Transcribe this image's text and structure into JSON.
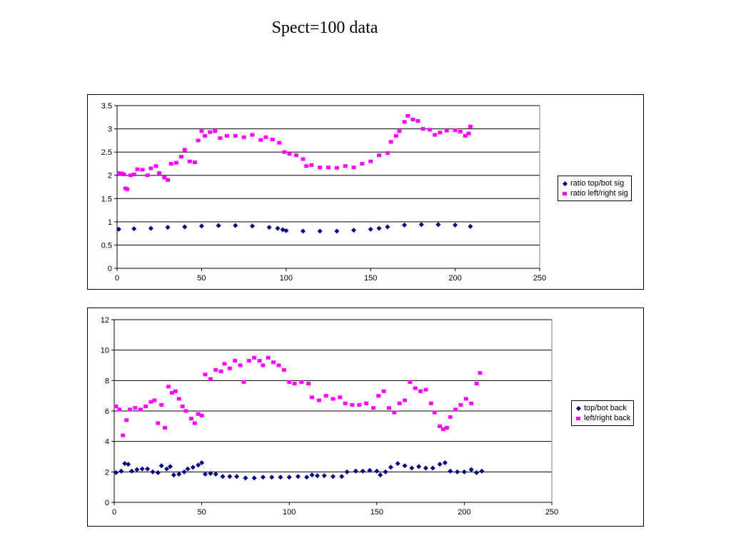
{
  "page": {
    "title": "Spect=100 data"
  },
  "colors": {
    "series_a": "#000080",
    "series_b": "#ff00ff",
    "grid": "#000000",
    "background": "#ffffff"
  },
  "chart_data": [
    {
      "type": "scatter",
      "title": "",
      "xlabel": "",
      "ylabel": "",
      "xlim": [
        0,
        250
      ],
      "ylim": [
        0,
        3.5
      ],
      "xticks": [
        "0",
        "50",
        "100",
        "150",
        "200",
        "250"
      ],
      "yticks": [
        "0",
        "0.5",
        "1",
        "1.5",
        "2",
        "2.5",
        "3",
        "3.5"
      ],
      "grid": "horizontal",
      "legend_position": "right",
      "series": [
        {
          "name": "ratio top/bot sig",
          "marker": "diamond",
          "color": "#000080",
          "points": [
            [
              1,
              0.84
            ],
            [
              10,
              0.85
            ],
            [
              20,
              0.86
            ],
            [
              30,
              0.88
            ],
            [
              40,
              0.89
            ],
            [
              50,
              0.91
            ],
            [
              60,
              0.92
            ],
            [
              70,
              0.92
            ],
            [
              80,
              0.91
            ],
            [
              90,
              0.88
            ],
            [
              95,
              0.86
            ],
            [
              98,
              0.83
            ],
            [
              100,
              0.81
            ],
            [
              110,
              0.8
            ],
            [
              120,
              0.8
            ],
            [
              130,
              0.8
            ],
            [
              140,
              0.82
            ],
            [
              150,
              0.84
            ],
            [
              155,
              0.86
            ],
            [
              160,
              0.89
            ],
            [
              170,
              0.93
            ],
            [
              180,
              0.94
            ],
            [
              190,
              0.94
            ],
            [
              200,
              0.93
            ],
            [
              209,
              0.9
            ]
          ]
        },
        {
          "name": "ratio left/right sig",
          "marker": "square",
          "color": "#ff00ff",
          "points": [
            [
              1,
              2.05
            ],
            [
              3,
              2.04
            ],
            [
              4,
              2.02
            ],
            [
              5,
              1.72
            ],
            [
              6,
              1.7
            ],
            [
              8,
              2.0
            ],
            [
              10,
              2.02
            ],
            [
              12,
              2.13
            ],
            [
              15,
              2.12
            ],
            [
              18,
              2.0
            ],
            [
              20,
              2.15
            ],
            [
              23,
              2.2
            ],
            [
              25,
              2.05
            ],
            [
              28,
              1.95
            ],
            [
              30,
              1.9
            ],
            [
              32,
              2.25
            ],
            [
              35,
              2.27
            ],
            [
              38,
              2.4
            ],
            [
              40,
              2.55
            ],
            [
              43,
              2.3
            ],
            [
              46,
              2.28
            ],
            [
              48,
              2.75
            ],
            [
              50,
              2.95
            ],
            [
              52,
              2.85
            ],
            [
              55,
              2.93
            ],
            [
              58,
              2.95
            ],
            [
              61,
              2.8
            ],
            [
              65,
              2.85
            ],
            [
              70,
              2.85
            ],
            [
              75,
              2.82
            ],
            [
              80,
              2.87
            ],
            [
              85,
              2.76
            ],
            [
              88,
              2.82
            ],
            [
              92,
              2.77
            ],
            [
              96,
              2.7
            ],
            [
              99,
              2.5
            ],
            [
              102,
              2.46
            ],
            [
              106,
              2.43
            ],
            [
              110,
              2.35
            ],
            [
              112,
              2.2
            ],
            [
              115,
              2.22
            ],
            [
              120,
              2.17
            ],
            [
              125,
              2.17
            ],
            [
              130,
              2.16
            ],
            [
              135,
              2.2
            ],
            [
              140,
              2.17
            ],
            [
              145,
              2.25
            ],
            [
              150,
              2.3
            ],
            [
              155,
              2.43
            ],
            [
              160,
              2.48
            ],
            [
              162,
              2.72
            ],
            [
              165,
              2.85
            ],
            [
              167,
              2.95
            ],
            [
              170,
              3.15
            ],
            [
              172,
              3.28
            ],
            [
              175,
              3.2
            ],
            [
              178,
              3.17
            ],
            [
              181,
              3.0
            ],
            [
              185,
              2.98
            ],
            [
              188,
              2.87
            ],
            [
              191,
              2.92
            ],
            [
              195,
              2.96
            ],
            [
              200,
              2.97
            ],
            [
              203,
              2.94
            ],
            [
              206,
              2.85
            ],
            [
              208,
              2.9
            ],
            [
              209,
              3.05
            ]
          ]
        }
      ]
    },
    {
      "type": "scatter",
      "title": "",
      "xlabel": "",
      "ylabel": "",
      "xlim": [
        0,
        250
      ],
      "ylim": [
        0,
        12
      ],
      "xticks": [
        "0",
        "50",
        "100",
        "150",
        "200",
        "250"
      ],
      "yticks": [
        "0",
        "2",
        "4",
        "6",
        "8",
        "10",
        "12"
      ],
      "grid": "horizontal",
      "legend_position": "right",
      "series": [
        {
          "name": "top/bot back",
          "marker": "diamond",
          "color": "#000080",
          "points": [
            [
              1,
              1.95
            ],
            [
              4,
              2.05
            ],
            [
              6,
              2.55
            ],
            [
              8,
              2.5
            ],
            [
              10,
              2.05
            ],
            [
              13,
              2.15
            ],
            [
              16,
              2.2
            ],
            [
              19,
              2.2
            ],
            [
              22,
              2.0
            ],
            [
              25,
              1.95
            ],
            [
              27,
              2.4
            ],
            [
              30,
              2.2
            ],
            [
              32,
              2.35
            ],
            [
              34,
              1.8
            ],
            [
              37,
              1.85
            ],
            [
              40,
              2.0
            ],
            [
              42,
              2.2
            ],
            [
              45,
              2.3
            ],
            [
              48,
              2.45
            ],
            [
              50,
              2.6
            ],
            [
              52,
              1.85
            ],
            [
              55,
              1.9
            ],
            [
              58,
              1.85
            ],
            [
              62,
              1.7
            ],
            [
              66,
              1.7
            ],
            [
              70,
              1.7
            ],
            [
              75,
              1.6
            ],
            [
              80,
              1.6
            ],
            [
              85,
              1.65
            ],
            [
              90,
              1.65
            ],
            [
              95,
              1.65
            ],
            [
              100,
              1.65
            ],
            [
              105,
              1.7
            ],
            [
              110,
              1.65
            ],
            [
              113,
              1.8
            ],
            [
              116,
              1.75
            ],
            [
              120,
              1.75
            ],
            [
              125,
              1.7
            ],
            [
              130,
              1.7
            ],
            [
              133,
              2.0
            ],
            [
              138,
              2.05
            ],
            [
              142,
              2.05
            ],
            [
              146,
              2.1
            ],
            [
              150,
              2.05
            ],
            [
              152,
              1.8
            ],
            [
              155,
              2.0
            ],
            [
              158,
              2.3
            ],
            [
              162,
              2.55
            ],
            [
              166,
              2.4
            ],
            [
              170,
              2.25
            ],
            [
              174,
              2.35
            ],
            [
              178,
              2.25
            ],
            [
              182,
              2.25
            ],
            [
              186,
              2.5
            ],
            [
              189,
              2.6
            ],
            [
              192,
              2.05
            ],
            [
              196,
              2.0
            ],
            [
              200,
              2.0
            ],
            [
              204,
              2.15
            ],
            [
              207,
              1.95
            ],
            [
              210,
              2.05
            ]
          ]
        },
        {
          "name": "left/right back",
          "marker": "square",
          "color": "#ff00ff",
          "points": [
            [
              1,
              6.3
            ],
            [
              3,
              6.1
            ],
            [
              5,
              4.4
            ],
            [
              7,
              5.4
            ],
            [
              9,
              6.1
            ],
            [
              12,
              6.2
            ],
            [
              15,
              6.1
            ],
            [
              18,
              6.3
            ],
            [
              21,
              6.6
            ],
            [
              23,
              6.7
            ],
            [
              25,
              5.2
            ],
            [
              27,
              6.4
            ],
            [
              29,
              4.9
            ],
            [
              31,
              7.6
            ],
            [
              33,
              7.2
            ],
            [
              35,
              7.3
            ],
            [
              37,
              6.8
            ],
            [
              39,
              6.3
            ],
            [
              41,
              6.0
            ],
            [
              44,
              5.5
            ],
            [
              46,
              5.2
            ],
            [
              48,
              5.8
            ],
            [
              50,
              5.7
            ],
            [
              52,
              8.4
            ],
            [
              55,
              8.1
            ],
            [
              58,
              8.7
            ],
            [
              61,
              8.6
            ],
            [
              63,
              9.1
            ],
            [
              66,
              8.8
            ],
            [
              69,
              9.3
            ],
            [
              72,
              9.0
            ],
            [
              74,
              7.9
            ],
            [
              77,
              9.3
            ],
            [
              80,
              9.5
            ],
            [
              83,
              9.3
            ],
            [
              85,
              9.0
            ],
            [
              88,
              9.5
            ],
            [
              91,
              9.2
            ],
            [
              94,
              9.0
            ],
            [
              97,
              8.7
            ],
            [
              100,
              7.9
            ],
            [
              103,
              7.8
            ],
            [
              107,
              7.9
            ],
            [
              111,
              7.8
            ],
            [
              113,
              6.9
            ],
            [
              117,
              6.7
            ],
            [
              121,
              7.0
            ],
            [
              125,
              6.8
            ],
            [
              129,
              6.9
            ],
            [
              132,
              6.5
            ],
            [
              136,
              6.4
            ],
            [
              140,
              6.4
            ],
            [
              144,
              6.5
            ],
            [
              148,
              6.2
            ],
            [
              151,
              7.0
            ],
            [
              154,
              7.3
            ],
            [
              157,
              6.2
            ],
            [
              160,
              5.9
            ],
            [
              163,
              6.5
            ],
            [
              166,
              6.7
            ],
            [
              169,
              7.9
            ],
            [
              172,
              7.5
            ],
            [
              175,
              7.3
            ],
            [
              178,
              7.4
            ],
            [
              181,
              6.5
            ],
            [
              183,
              5.9
            ],
            [
              186,
              5.0
            ],
            [
              188,
              4.8
            ],
            [
              190,
              4.9
            ],
            [
              192,
              5.6
            ],
            [
              195,
              6.1
            ],
            [
              198,
              6.4
            ],
            [
              201,
              6.8
            ],
            [
              204,
              6.5
            ],
            [
              207,
              7.8
            ],
            [
              209,
              8.5
            ]
          ]
        }
      ]
    }
  ]
}
